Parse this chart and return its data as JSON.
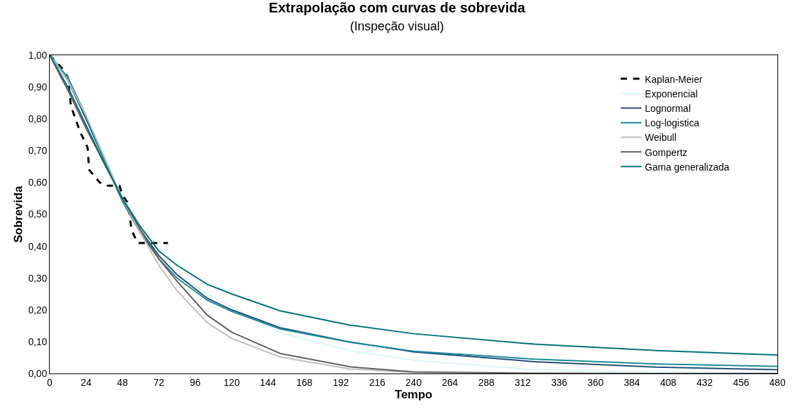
{
  "chart_data": {
    "type": "line",
    "title": "Extrapolação com curvas de sobrevida",
    "subtitle": "(Inspeção visual)",
    "xlabel": "Tempo",
    "ylabel": "Sobrevida",
    "x": [
      0,
      12,
      24,
      36,
      48,
      60,
      72,
      84,
      104,
      120,
      152,
      198,
      240,
      320,
      400,
      480
    ],
    "xlim": [
      0,
      480
    ],
    "xticks": [
      0,
      24,
      48,
      72,
      96,
      120,
      144,
      168,
      192,
      216,
      240,
      264,
      288,
      312,
      336,
      360,
      384,
      408,
      432,
      456,
      480
    ],
    "ylim": [
      0,
      1
    ],
    "yticks": [
      {
        "value": 0,
        "label": "0,00"
      },
      {
        "value": 0.1,
        "label": "0,10"
      },
      {
        "value": 0.2,
        "label": "0,20"
      },
      {
        "value": 0.3,
        "label": "0,30"
      },
      {
        "value": 0.4,
        "label": "0,40"
      },
      {
        "value": 0.5,
        "label": "0,50"
      },
      {
        "value": 0.6,
        "label": "0,60"
      },
      {
        "value": 0.7,
        "label": "0,70"
      },
      {
        "value": 0.8,
        "label": "0,80"
      },
      {
        "value": 0.9,
        "label": "0,90"
      },
      {
        "value": 1,
        "label": "1,00"
      }
    ],
    "legend": "top right",
    "marker": "none",
    "series": [
      {
        "name": "Kaplan-Meier",
        "color": "#000000",
        "line_style": "dashed",
        "x": [
          0,
          8,
          12,
          14,
          20,
          25,
          26,
          33,
          37,
          46,
          48,
          51,
          52,
          54,
          58,
          78
        ],
        "values": [
          1.0,
          0.96,
          0.93,
          0.84,
          0.76,
          0.71,
          0.64,
          0.6,
          0.59,
          0.59,
          0.56,
          0.54,
          0.52,
          0.45,
          0.41,
          0.41
        ]
      },
      {
        "name": "Exponencial",
        "color": "#d9f4f5",
        "values": [
          1,
          0.93,
          0.8,
          0.67,
          0.55,
          0.45,
          0.37,
          0.31,
          0.25,
          0.21,
          0.128,
          0.072,
          0.041,
          0.012,
          0.004,
          0.002
        ]
      },
      {
        "name": "Lognormal",
        "color": "#1f4e79",
        "values": [
          1,
          0.92,
          0.8,
          0.67,
          0.55,
          0.45,
          0.37,
          0.31,
          0.236,
          0.2,
          0.144,
          0.099,
          0.068,
          0.037,
          0.02,
          0.012
        ]
      },
      {
        "name": "Log-logistica",
        "color": "#1a8a9a",
        "values": [
          1,
          0.93,
          0.81,
          0.67,
          0.54,
          0.44,
          0.36,
          0.3,
          0.23,
          0.195,
          0.14,
          0.098,
          0.07,
          0.045,
          0.03,
          0.022
        ]
      },
      {
        "name": "Weibull",
        "color": "#bfbfbf",
        "values": [
          1,
          0.92,
          0.81,
          0.68,
          0.55,
          0.44,
          0.34,
          0.26,
          0.159,
          0.11,
          0.052,
          0.014,
          0.003,
          0,
          0,
          0
        ]
      },
      {
        "name": "Gompertz",
        "color": "#606060",
        "values": [
          1,
          0.89,
          0.77,
          0.66,
          0.55,
          0.45,
          0.36,
          0.29,
          0.183,
          0.13,
          0.063,
          0.021,
          0.005,
          0.001,
          0,
          0
        ]
      },
      {
        "name": "Gama generalizada",
        "color": "#007078",
        "values": [
          1,
          0.9,
          0.78,
          0.66,
          0.55,
          0.46,
          0.385,
          0.34,
          0.28,
          0.25,
          0.197,
          0.152,
          0.125,
          0.092,
          0.072,
          0.058
        ]
      }
    ]
  }
}
